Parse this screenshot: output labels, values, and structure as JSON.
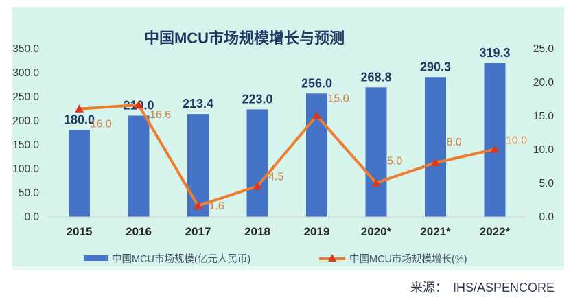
{
  "title": "中国MCU市场规模增长与预测",
  "source": {
    "label": "来源：",
    "value": "IHS/ASPENCORE"
  },
  "legend": {
    "bar_label": "中国MCU市场规模(亿元人民币)",
    "line_label": "中国MCU市场规模增长(%)"
  },
  "colors": {
    "panel_bg": "#d6f4ec",
    "bar": "#4573c5",
    "line": "#ed7d31",
    "marker": "#e0351b",
    "value_label": "#1f3864",
    "growth_label": "#d57d3c",
    "axis_tick": "#3a3a3a",
    "x_label": "#262626",
    "axis_line": "#d9d9d9",
    "title": "#1f3864",
    "legend_text": "#44546a",
    "source_text": "#333f50"
  },
  "chart_data": {
    "type": "bar",
    "subtype": "bar+line combo, dual axis",
    "title": "中国MCU市场规模增长与预测",
    "categories": [
      "2015",
      "2016",
      "2017",
      "2018",
      "2019",
      "2020*",
      "2021*",
      "2022*"
    ],
    "series": [
      {
        "name": "中国MCU市场规模(亿元人民币)",
        "type": "bar",
        "axis": "left",
        "values": [
          180.0,
          210.0,
          213.4,
          223.0,
          256.0,
          268.8,
          290.3,
          319.3
        ]
      },
      {
        "name": "中国MCU市场规模增长(%)",
        "type": "line",
        "axis": "right",
        "values": [
          16.0,
          16.6,
          1.6,
          4.5,
          15.0,
          5.0,
          8.0,
          10.0
        ]
      }
    ],
    "left_axis": {
      "min": 0,
      "max": 350,
      "step": 50
    },
    "right_axis": {
      "min": 0,
      "max": 25,
      "step": 5
    },
    "grid": false,
    "legend_position": "bottom",
    "data_labels": true,
    "growth_label_dy": [
      22,
      14,
      0,
      -14,
      -25,
      -32,
      -30,
      -13
    ]
  }
}
